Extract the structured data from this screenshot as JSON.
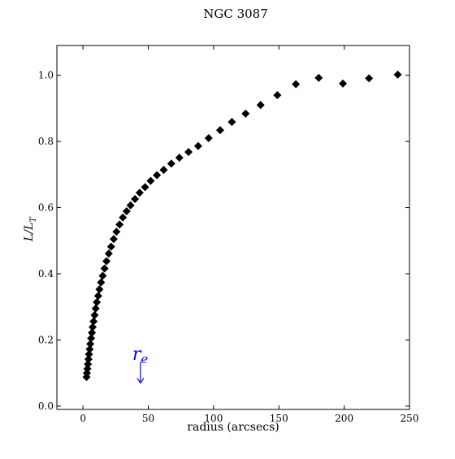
{
  "chart_data": {
    "type": "scatter",
    "title": "NGC 3087",
    "xlabel": "radius (arcsecs)",
    "ylabel_main": "L/L",
    "ylabel_sub": "T",
    "xlim": [
      -20,
      250
    ],
    "ylim": [
      -0.01,
      1.09
    ],
    "xticks": [
      0,
      50,
      100,
      150,
      200,
      250
    ],
    "xtick_labels": [
      "0",
      "50",
      "100",
      "150",
      "200",
      "250"
    ],
    "yticks": [
      0.0,
      0.2,
      0.4,
      0.6,
      0.8,
      1.0
    ],
    "ytick_labels": [
      "0.0",
      "0.2",
      "0.4",
      "0.6",
      "0.8",
      "1.0"
    ],
    "grid": false,
    "marker": "diamond",
    "marker_color": "#000000",
    "annotation": {
      "text_main": "r",
      "text_sub": "e",
      "color": "#0000ff",
      "arrow": "down",
      "x": 44,
      "y_arrow_tip": 0.07,
      "y_arrow_top": 0.135,
      "y_text": 0.14
    },
    "series": [
      {
        "points": [
          [
            2.7,
            0.088
          ],
          [
            3.0,
            0.1
          ],
          [
            3.4,
            0.113
          ],
          [
            3.8,
            0.127
          ],
          [
            4.2,
            0.142
          ],
          [
            4.6,
            0.157
          ],
          [
            5.1,
            0.172
          ],
          [
            5.6,
            0.188
          ],
          [
            6.2,
            0.205
          ],
          [
            6.8,
            0.222
          ],
          [
            7.4,
            0.239
          ],
          [
            8.1,
            0.256
          ],
          [
            8.9,
            0.275
          ],
          [
            9.7,
            0.295
          ],
          [
            10.6,
            0.314
          ],
          [
            11.6,
            0.333
          ],
          [
            12.6,
            0.353
          ],
          [
            13.8,
            0.374
          ],
          [
            15.1,
            0.394
          ],
          [
            16.5,
            0.416
          ],
          [
            18.0,
            0.438
          ],
          [
            19.7,
            0.461
          ],
          [
            21.5,
            0.482
          ],
          [
            23.5,
            0.505
          ],
          [
            25.6,
            0.527
          ],
          [
            28.0,
            0.549
          ],
          [
            30.5,
            0.57
          ],
          [
            33.4,
            0.589
          ],
          [
            36.4,
            0.607
          ],
          [
            39.8,
            0.626
          ],
          [
            43.4,
            0.645
          ],
          [
            47.5,
            0.662
          ],
          [
            51.8,
            0.681
          ],
          [
            56.6,
            0.698
          ],
          [
            61.8,
            0.714
          ],
          [
            67.6,
            0.733
          ],
          [
            73.8,
            0.751
          ],
          [
            80.8,
            0.768
          ],
          [
            88.2,
            0.786
          ],
          [
            96.2,
            0.81
          ],
          [
            105.0,
            0.834
          ],
          [
            114.0,
            0.859
          ],
          [
            124.5,
            0.884
          ],
          [
            136.0,
            0.91
          ],
          [
            148.8,
            0.94
          ],
          [
            163.0,
            0.973
          ],
          [
            180.5,
            0.992
          ],
          [
            199.0,
            0.975
          ],
          [
            219.0,
            0.991
          ],
          [
            241.0,
            1.002
          ]
        ]
      }
    ]
  }
}
